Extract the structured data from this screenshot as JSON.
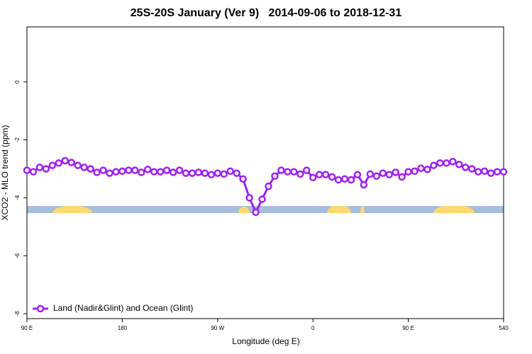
{
  "chart_data": {
    "type": "line",
    "title": "25S-20S January (Ver 9)   2014-09-06 to 2018-12-31",
    "x_label": "Longitude (deg E)",
    "y_label": "XCO2 - MLO trend (ppm)",
    "xlim": [
      90,
      540
    ],
    "ylim": [
      -8.17,
      1.9
    ],
    "xticks": [
      {
        "value": 90,
        "label": "90 E"
      },
      180,
      {
        "value": 270,
        "label": "90 W"
      },
      {
        "value": 360,
        "label": "0"
      },
      {
        "value": 450,
        "label": "90 E"
      },
      540
    ],
    "yticks": [
      0,
      -2,
      -4,
      -6,
      -8
    ],
    "x": [
      90,
      96,
      102,
      108,
      114,
      120,
      126,
      132,
      138,
      144,
      150,
      156,
      162,
      168,
      174,
      180,
      186,
      192,
      198,
      204,
      210,
      216,
      222,
      228,
      234,
      240,
      246,
      252,
      258,
      264,
      270,
      276,
      282,
      288,
      294,
      300,
      306,
      312,
      318,
      324,
      330,
      336,
      342,
      348,
      354,
      360,
      366,
      372,
      378,
      384,
      390,
      396,
      402,
      408,
      414,
      420,
      426,
      432,
      438,
      444,
      450,
      456,
      462,
      468,
      474,
      480,
      486,
      492,
      498,
      504,
      510,
      516,
      522,
      528,
      534,
      540
    ],
    "series": [
      {
        "name": "Land (Nadir&Glint) and Ocean (Glint)",
        "color": "#a020f0",
        "values": [
          -3.05,
          -3.1,
          -2.95,
          -3.0,
          -2.88,
          -2.8,
          -2.72,
          -2.78,
          -2.88,
          -2.95,
          -3.0,
          -3.12,
          -3.05,
          -3.15,
          -3.1,
          -3.08,
          -3.05,
          -3.05,
          -3.12,
          -3.02,
          -3.1,
          -3.1,
          -3.05,
          -3.12,
          -3.05,
          -3.15,
          -3.15,
          -3.12,
          -3.15,
          -3.2,
          -3.15,
          -3.18,
          -3.08,
          -3.15,
          -3.35,
          -4.0,
          -4.5,
          -4.05,
          -3.6,
          -3.25,
          -3.05,
          -3.1,
          -3.1,
          -3.18,
          -3.05,
          -3.3,
          -3.2,
          -3.2,
          -3.28,
          -3.38,
          -3.35,
          -3.38,
          -3.2,
          -3.55,
          -3.18,
          -3.25,
          -3.15,
          -3.2,
          -3.12,
          -3.28,
          -3.1,
          -3.08,
          -2.98,
          -3.02,
          -2.88,
          -2.8,
          -2.8,
          -2.75,
          -2.85,
          -2.95,
          -3.0,
          -3.1,
          -3.08,
          -3.15,
          -3.1,
          -3.1
        ]
      }
    ],
    "legend": "bottom-left"
  }
}
